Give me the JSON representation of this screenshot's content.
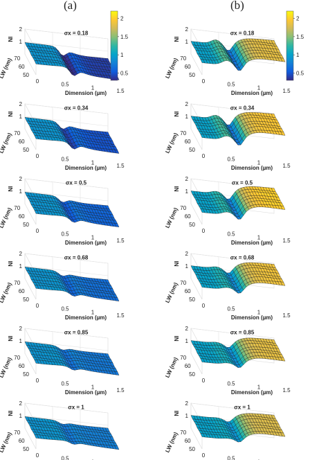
{
  "panel_labels": [
    "(a)",
    "(b)"
  ],
  "axes": {
    "zlabel": "NI",
    "ylabel": "LW (nm)",
    "xlabel": "Dimension (µm)",
    "z_ticks": [
      "1",
      "2"
    ],
    "y_ticks": [
      "70",
      "60",
      "50"
    ],
    "x_ticks": [
      "0",
      "0.5",
      "1",
      "1.5"
    ]
  },
  "colorbar": {
    "ticks": [
      "2",
      "1.5",
      "1",
      "0.5"
    ],
    "range": [
      0.3,
      2.2
    ],
    "colormap": "parula",
    "colors": [
      "#352a87",
      "#0f5cdd",
      "#1481d6",
      "#06a4ca",
      "#2eb7a4",
      "#87bf77",
      "#d1bb59",
      "#fec832",
      "#f9fb0e"
    ]
  },
  "chart_data": [
    {
      "type": "surface",
      "column": "a",
      "title": "σx = 0.18",
      "x_range": [
        0,
        1.5
      ],
      "y_range": [
        50,
        75
      ],
      "z_range": [
        0,
        2
      ],
      "profile": {
        "plateau": 0.9,
        "rise_peak": 0.92,
        "dip_min": 0.35,
        "after": 0.4
      }
    },
    {
      "type": "surface",
      "column": "a",
      "title": "σx = 0.34",
      "x_range": [
        0,
        1.5
      ],
      "y_range": [
        50,
        75
      ],
      "z_range": [
        0,
        2
      ],
      "profile": {
        "plateau": 0.9,
        "rise_peak": 0.92,
        "dip_min": 0.45,
        "after": 0.5
      }
    },
    {
      "type": "surface",
      "column": "a",
      "title": "σx = 0.5",
      "x_range": [
        0,
        1.5
      ],
      "y_range": [
        50,
        75
      ],
      "z_range": [
        0,
        2
      ],
      "profile": {
        "plateau": 0.9,
        "rise_peak": 0.92,
        "dip_min": 0.55,
        "after": 0.6
      }
    },
    {
      "type": "surface",
      "column": "a",
      "title": "σx = 0.68",
      "x_range": [
        0,
        1.5
      ],
      "y_range": [
        50,
        75
      ],
      "z_range": [
        0,
        2
      ],
      "profile": {
        "plateau": 0.9,
        "rise_peak": 0.92,
        "dip_min": 0.62,
        "after": 0.66
      }
    },
    {
      "type": "surface",
      "column": "a",
      "title": "σx = 0.85",
      "x_range": [
        0,
        1.5
      ],
      "y_range": [
        50,
        75
      ],
      "z_range": [
        0,
        2
      ],
      "profile": {
        "plateau": 0.9,
        "rise_peak": 0.92,
        "dip_min": 0.68,
        "after": 0.72
      }
    },
    {
      "type": "surface",
      "column": "a",
      "title": "σx = 1",
      "x_range": [
        0,
        1.5
      ],
      "y_range": [
        50,
        75
      ],
      "z_range": [
        0,
        2
      ],
      "profile": {
        "plateau": 0.9,
        "rise_peak": 0.92,
        "dip_min": 0.72,
        "after": 0.76
      }
    },
    {
      "type": "surface",
      "column": "b",
      "title": "σx = 0.18",
      "x_range": [
        0,
        1.5
      ],
      "y_range": [
        50,
        75
      ],
      "z_range": [
        0,
        2
      ],
      "profile": {
        "plateau": 1.0,
        "rise_peak": 1.35,
        "dip_min": 0.45,
        "after": 1.85
      }
    },
    {
      "type": "surface",
      "column": "b",
      "title": "σx = 0.34",
      "x_range": [
        0,
        1.5
      ],
      "y_range": [
        50,
        75
      ],
      "z_range": [
        0,
        2
      ],
      "profile": {
        "plateau": 1.0,
        "rise_peak": 1.3,
        "dip_min": 0.45,
        "after": 1.95
      }
    },
    {
      "type": "surface",
      "column": "b",
      "title": "σx = 0.5",
      "x_range": [
        0,
        1.5
      ],
      "y_range": [
        50,
        75
      ],
      "z_range": [
        0,
        2
      ],
      "profile": {
        "plateau": 1.0,
        "rise_peak": 1.2,
        "dip_min": 0.5,
        "after": 2.0
      }
    },
    {
      "type": "surface",
      "column": "b",
      "title": "σx = 0.68",
      "x_range": [
        0,
        1.5
      ],
      "y_range": [
        50,
        75
      ],
      "z_range": [
        0,
        2
      ],
      "profile": {
        "plateau": 1.0,
        "rise_peak": 1.15,
        "dip_min": 0.6,
        "after": 1.9
      }
    },
    {
      "type": "surface",
      "column": "b",
      "title": "σx = 0.85",
      "x_range": [
        0,
        1.5
      ],
      "y_range": [
        50,
        75
      ],
      "z_range": [
        0,
        2
      ],
      "profile": {
        "plateau": 1.0,
        "rise_peak": 1.1,
        "dip_min": 0.65,
        "after": 1.85
      }
    },
    {
      "type": "surface",
      "column": "b",
      "title": "σx = 1",
      "x_range": [
        0,
        1.5
      ],
      "y_range": [
        50,
        75
      ],
      "z_range": [
        0,
        2
      ],
      "profile": {
        "plateau": 1.0,
        "rise_peak": 1.05,
        "dip_min": 0.7,
        "after": 1.8
      }
    }
  ]
}
